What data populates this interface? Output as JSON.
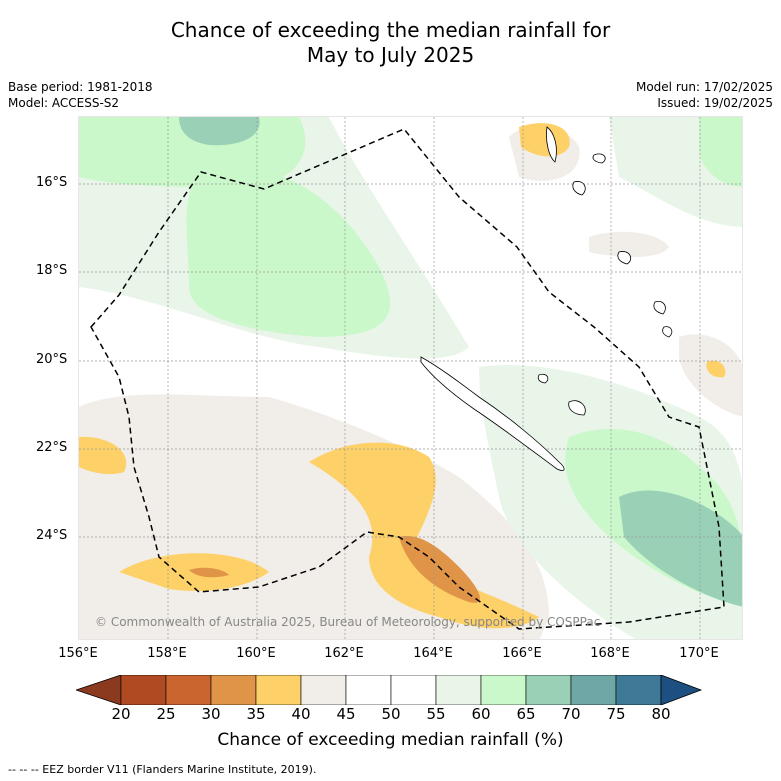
{
  "title_line1": "Chance of exceeding the median rainfall for",
  "title_line2": "May to July 2025",
  "meta_left": [
    "Base period: 1981-2018",
    "Model: ACCESS-S2"
  ],
  "meta_right": [
    "Model run: 17/02/2025",
    "Issued: 19/02/2025"
  ],
  "lat_labels": [
    "16°S",
    "18°S",
    "20°S",
    "22°S",
    "24°S"
  ],
  "lon_labels": [
    "156°E",
    "158°E",
    "160°E",
    "162°E",
    "164°E",
    "166°E",
    "168°E",
    "170°E"
  ],
  "copyright": "© Commonwealth of Australia 2025, Bureau of Meteorology, supported by COSPPac",
  "colorbar": {
    "ticks": [
      "20",
      "25",
      "30",
      "35",
      "40",
      "45",
      "50",
      "55",
      "60",
      "65",
      "70",
      "75",
      "80"
    ],
    "colors": [
      "#8b3a1f",
      "#b04a22",
      "#cb6530",
      "#e09448",
      "#fdd068",
      "#f1ede8",
      "#ffffff",
      "#ffffff",
      "#e9f5e8",
      "#caf8cb",
      "#9ad0b6",
      "#6ea7a6",
      "#3e7a97",
      "#1d4f80"
    ],
    "label": "Chance of exceeding median rainfall (%)"
  },
  "footnote": "-- -- -- EEZ border V11 (Flanders Marine Institute, 2019)."
}
